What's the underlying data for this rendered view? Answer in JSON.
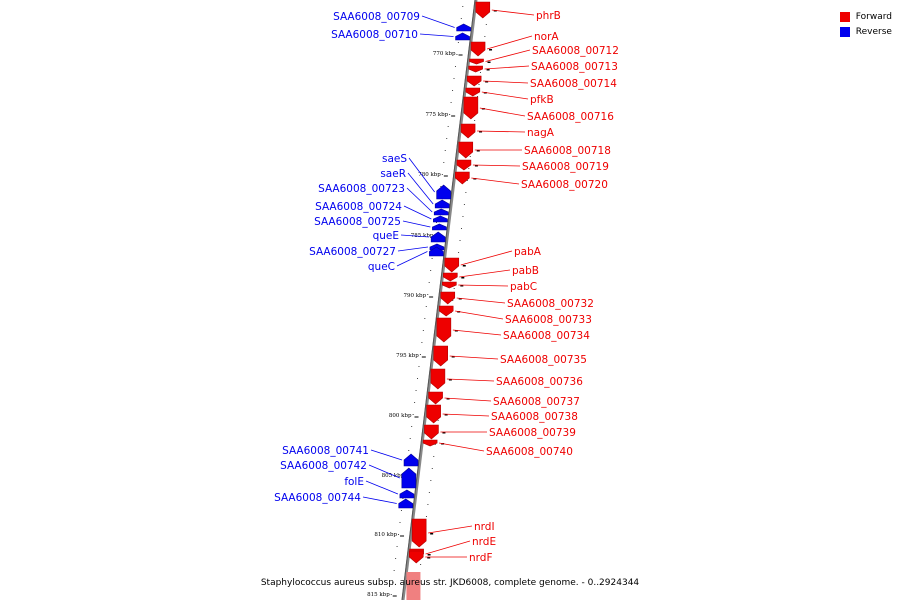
{
  "legend": {
    "forward_label": "Forward",
    "reverse_label": "Reverse",
    "forward_color": "#ee0000",
    "reverse_color": "#0000ee"
  },
  "caption": "Staphylococcus aureus subsp. aureus str. JKD6008, complete genome. - 0..2924344",
  "ticks": [
    "770 kbp",
    "775 kbp",
    "780 kbp",
    "785 kbp",
    "790 kbp",
    "795 kbp",
    "800 kbp",
    "805 kbp",
    "810 kbp",
    "815 kbp"
  ],
  "forward_genes": [
    "phrB",
    "norA",
    "SAA6008_00712",
    "SAA6008_00713",
    "SAA6008_00714",
    "pfkB",
    "SAA6008_00716",
    "nagA",
    "SAA6008_00718",
    "SAA6008_00719",
    "SAA6008_00720",
    "pabA",
    "pabB",
    "pabC",
    "SAA6008_00732",
    "SAA6008_00733",
    "SAA6008_00734",
    "SAA6008_00735",
    "SAA6008_00736",
    "SAA6008_00737",
    "SAA6008_00738",
    "SAA6008_00739",
    "SAA6008_00740",
    "nrdI",
    "nrdE",
    "nrdF"
  ],
  "reverse_genes": [
    "SAA6008_00709",
    "SAA6008_00710",
    "saeS",
    "saeR",
    "SAA6008_00723",
    "SAA6008_00724",
    "SAA6008_00725",
    "queE",
    "SAA6008_00727",
    "queC",
    "SAA6008_00741",
    "SAA6008_00742",
    "folE",
    "SAA6008_00744"
  ]
}
